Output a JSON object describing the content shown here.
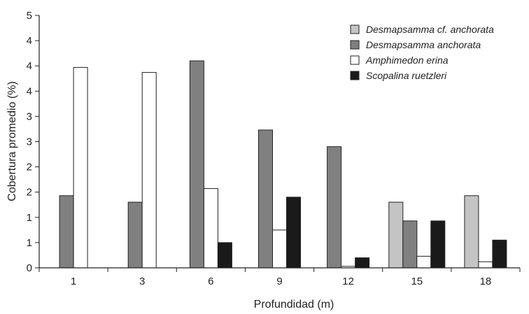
{
  "chart_data": {
    "type": "bar",
    "title": "",
    "xlabel": "Profundidad (m)",
    "ylabel": "Cobertura promedio (%)",
    "categories": [
      "1",
      "3",
      "6",
      "9",
      "12",
      "15",
      "18"
    ],
    "ylim": [
      0,
      5
    ],
    "yticks": [
      0,
      0.5,
      1,
      1.5,
      2,
      2.5,
      3,
      3.5,
      4,
      4.5,
      5
    ],
    "ytick_labels": [
      "0",
      "1",
      "1",
      "2",
      "2",
      "3",
      "3",
      "4",
      "4",
      "4",
      "5"
    ],
    "grid": false,
    "legend_position": "top-right",
    "series": [
      {
        "name": "Desmapsamma cf. anchorata",
        "color": "#c4c4c4",
        "values": [
          0,
          0,
          0,
          0,
          0,
          1.3,
          1.43
        ]
      },
      {
        "name": "Desmapsamma anchorata",
        "color": "#808080",
        "values": [
          1.43,
          1.3,
          4.1,
          2.73,
          2.4,
          0.93,
          0
        ]
      },
      {
        "name": "Amphimedon erina",
        "color": "#ffffff",
        "values": [
          3.97,
          3.87,
          1.57,
          0.75,
          0.03,
          0.23,
          0.12
        ]
      },
      {
        "name": "Scopalina ruetzleri",
        "color": "#1a1a1a",
        "values": [
          0,
          0,
          0.5,
          1.4,
          0.2,
          0.93,
          0.55
        ]
      }
    ]
  }
}
